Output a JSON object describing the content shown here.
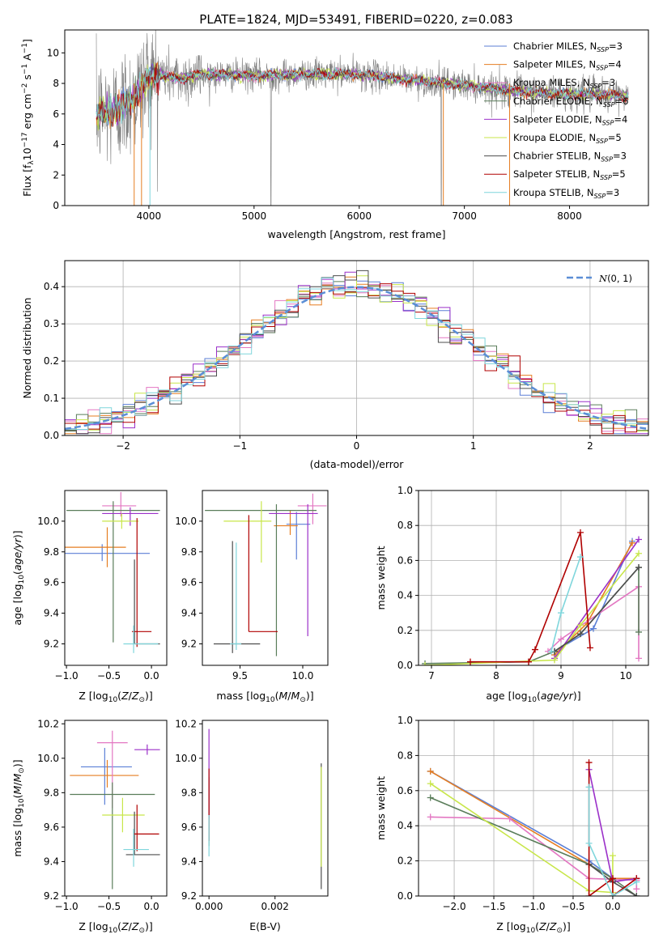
{
  "title": "PLATE=1824, MJD=53491, FIBERID=0220, z=0.083",
  "models": [
    {
      "name": "Chabrier MILES, N_SSP=3",
      "label_main": "Chabrier MILES, N",
      "sub": "SSP",
      "label_tail": "=3",
      "color": "#5b7fd6"
    },
    {
      "name": "Salpeter MILES, N_SSP=4",
      "label_main": "Salpeter MILES, N",
      "sub": "SSP",
      "label_tail": "=4",
      "color": "#e67e22"
    },
    {
      "name": "Kroupa MILES, N_SSP=3",
      "label_main": "Kroupa MILES, N",
      "sub": "SSP",
      "label_tail": "=3",
      "color": "#e377c2"
    },
    {
      "name": "Chabrier ELODIE, N_SSP=6",
      "label_main": "Chabrier ELODIE, N",
      "sub": "SSP",
      "label_tail": "=6",
      "color": "#5a7d5a"
    },
    {
      "name": "Salpeter ELODIE, N_SSP=4",
      "label_main": "Salpeter ELODIE, N",
      "sub": "SSP",
      "label_tail": "=4",
      "color": "#9b30c9"
    },
    {
      "name": "Kroupa ELODIE, N_SSP=5",
      "label_main": "Kroupa ELODIE, N",
      "sub": "SSP",
      "label_tail": "=5",
      "color": "#c8e64a"
    },
    {
      "name": "Chabrier STELIB, N_SSP=3",
      "label_main": "Chabrier STELIB, N",
      "sub": "SSP",
      "label_tail": "=3",
      "color": "#4d4d4d"
    },
    {
      "name": "Salpeter STELIB, N_SSP=5",
      "label_main": "Salpeter STELIB, N",
      "sub": "SSP",
      "label_tail": "=5",
      "color": "#b00000"
    },
    {
      "name": "Kroupa STELIB, N_SSP=3",
      "label_main": "Kroupa STELIB, N",
      "sub": "SSP",
      "label_tail": "=3",
      "color": "#7fd6dc"
    }
  ],
  "data_color": "#808080",
  "chart_data": [
    {
      "id": "spectrum",
      "type": "line",
      "xlabel": "wavelength [Angstrom, rest frame]",
      "ylabel": "Flux [f_λ 10^-17 erg cm^-2 s^-1 A^-1]",
      "xlim": [
        3200,
        8750
      ],
      "ylim": [
        0,
        11.5
      ],
      "xticks": [
        4000,
        5000,
        6000,
        7000,
        8000
      ],
      "yticks": [
        0,
        2,
        4,
        6,
        8,
        10
      ],
      "continuum": [
        [
          3500,
          6.0
        ],
        [
          3700,
          6.3
        ],
        [
          3900,
          7.4
        ],
        [
          4000,
          8.5
        ],
        [
          4100,
          8.6
        ],
        [
          4300,
          8.3
        ],
        [
          4500,
          8.6
        ],
        [
          5000,
          8.5
        ],
        [
          5500,
          8.6
        ],
        [
          6000,
          8.6
        ],
        [
          6500,
          8.2
        ],
        [
          7000,
          7.9
        ],
        [
          7500,
          7.5
        ],
        [
          7800,
          7.35
        ],
        [
          8000,
          7.3
        ],
        [
          8200,
          7.3
        ],
        [
          8500,
          7.2
        ]
      ],
      "grid": false
    },
    {
      "id": "residuals",
      "type": "histogram",
      "xlabel": "(data-model)/error",
      "ylabel": "Normed distribution",
      "xlim": [
        -2.5,
        2.5
      ],
      "ylim": [
        0,
        0.47
      ],
      "xticks": [
        -2,
        -1,
        0,
        1,
        2
      ],
      "yticks": [
        0.0,
        0.1,
        0.2,
        0.3,
        0.4
      ],
      "reference_label": "N(0,1)",
      "reference_color": "#5b8ed6",
      "reference": {
        "mean": 0,
        "sigma": 1
      },
      "grid": true
    },
    {
      "id": "age-vs-metallicity",
      "type": "scatter",
      "xlabel": "Z [log10(Z/Z⊙)]",
      "ylabel": "age [log10(age/yr)]",
      "xlim": [
        -1.02,
        0.18
      ],
      "ylim": [
        9.06,
        10.2
      ],
      "xticks": [
        -1.0,
        -0.5,
        0.0
      ],
      "yticks": [
        9.2,
        9.4,
        9.6,
        9.8,
        10.0
      ],
      "points": [
        {
          "model": 0,
          "x": -0.58,
          "y": 9.79,
          "xerr": [
            0.56,
            0.56
          ],
          "yerr": [
            0.05,
            0.06
          ]
        },
        {
          "model": 1,
          "x": -0.52,
          "y": 9.83,
          "xerr": [
            0.58,
            0.22
          ],
          "yerr": [
            0.13,
            0.13
          ]
        },
        {
          "model": 2,
          "x": -0.36,
          "y": 10.1,
          "xerr": [
            0.22,
            0.18
          ],
          "yerr": [
            0.07,
            0.09
          ]
        },
        {
          "model": 3,
          "x": -0.45,
          "y": 10.07,
          "xerr": [
            0.55,
            0.55
          ],
          "yerr": [
            0.86,
            0.06
          ]
        },
        {
          "model": 4,
          "x": -0.25,
          "y": 10.05,
          "xerr": [
            0.33,
            0.33
          ],
          "yerr": [
            0.08,
            0.04
          ]
        },
        {
          "model": 5,
          "x": -0.35,
          "y": 10.0,
          "xerr": [
            0.23,
            0.2
          ],
          "yerr": [
            0.05,
            0.05
          ]
        },
        {
          "model": 6,
          "x": -0.2,
          "y": 9.2,
          "xerr": [
            0.0,
            0.3
          ],
          "yerr": [
            0.0,
            0.55
          ]
        },
        {
          "model": 7,
          "x": -0.17,
          "y": 9.28,
          "xerr": [
            0.06,
            0.17
          ],
          "yerr": [
            0.1,
            0.74
          ]
        },
        {
          "model": 8,
          "x": -0.21,
          "y": 9.2,
          "xerr": [
            0.12,
            0.29
          ],
          "yerr": [
            0.06,
            0.12
          ]
        }
      ]
    },
    {
      "id": "age-vs-mass",
      "type": "scatter",
      "xlabel": "mass [log10(M/M⊙)]",
      "ylabel": "",
      "xlim": [
        9.2,
        10.2
      ],
      "ylim": [
        9.06,
        10.2
      ],
      "xticks": [
        9.5,
        10.0
      ],
      "yticks": [
        9.2,
        9.4,
        9.6,
        9.8,
        10.0
      ],
      "points": [
        {
          "model": 0,
          "x": 9.95,
          "y": 9.98,
          "xerr": [
            0.08,
            0.11
          ],
          "yerr": [
            0.23,
            0.08
          ]
        },
        {
          "model": 1,
          "x": 9.9,
          "y": 9.97,
          "xerr": [
            0.13,
            0.06
          ],
          "yerr": [
            0.06,
            0.1
          ]
        },
        {
          "model": 2,
          "x": 10.08,
          "y": 10.1,
          "xerr": [
            0.12,
            0.11
          ],
          "yerr": [
            0.12,
            0.08
          ]
        },
        {
          "model": 3,
          "x": 9.79,
          "y": 10.07,
          "xerr": [
            0.57,
            0.32
          ],
          "yerr": [
            0.95,
            0.04
          ]
        },
        {
          "model": 4,
          "x": 10.04,
          "y": 10.05,
          "xerr": [
            0.31,
            0.08
          ],
          "yerr": [
            0.8,
            0.06
          ]
        },
        {
          "model": 5,
          "x": 9.67,
          "y": 10.0,
          "xerr": [
            0.3,
            0.08
          ],
          "yerr": [
            0.27,
            0.13
          ]
        },
        {
          "model": 6,
          "x": 9.44,
          "y": 9.2,
          "xerr": [
            0.15,
            0.22
          ],
          "yerr": [
            0.06,
            0.67
          ]
        },
        {
          "model": 7,
          "x": 9.57,
          "y": 9.28,
          "xerr": [
            0.0,
            0.23
          ],
          "yerr": [
            0.0,
            0.76
          ]
        },
        {
          "model": 8,
          "x": 9.47,
          "y": 9.2,
          "xerr": [
            0.05,
            0.04
          ],
          "yerr": [
            0.04,
            0.66
          ]
        }
      ]
    },
    {
      "id": "weight-vs-age",
      "type": "line",
      "xlabel": "age [log10(age/yr)]",
      "ylabel": "mass weight",
      "xlim": [
        6.8,
        10.35
      ],
      "ylim": [
        0,
        1.0
      ],
      "xticks": [
        7,
        8,
        9,
        10
      ],
      "yticks": [
        0.0,
        0.2,
        0.4,
        0.6,
        0.8,
        1.0
      ],
      "series": [
        {
          "model": 0,
          "x": [
            8.9,
            9.5,
            10.1
          ],
          "y": [
            0.08,
            0.21,
            0.71
          ]
        },
        {
          "model": 1,
          "x": [
            8.9,
            9.4,
            10.1
          ],
          "y": [
            0.06,
            0.24,
            0.7
          ]
        },
        {
          "model": 2,
          "x": [
            8.8,
            9.0,
            10.2,
            10.2
          ],
          "y": [
            0.08,
            0.15,
            0.45,
            0.04
          ]
        },
        {
          "model": 3,
          "x": [
            6.9,
            8.5,
            8.9,
            9.3,
            10.2,
            10.2
          ],
          "y": [
            0.01,
            0.02,
            0.08,
            0.18,
            0.56,
            0.19
          ]
        },
        {
          "model": 4,
          "x": [
            8.9,
            10.2
          ],
          "y": [
            0.04,
            0.72
          ]
        },
        {
          "model": 5,
          "x": [
            6.9,
            8.9,
            9.3,
            10.2
          ],
          "y": [
            0.0,
            0.03,
            0.23,
            0.64
          ]
        },
        {
          "model": 6,
          "x": [
            8.9,
            9.3,
            10.2
          ],
          "y": [
            0.08,
            0.18,
            0.56
          ]
        },
        {
          "model": 7,
          "x": [
            7.6,
            8.5,
            8.6,
            9.3,
            9.45
          ],
          "y": [
            0.02,
            0.02,
            0.09,
            0.76,
            0.1
          ]
        },
        {
          "model": 8,
          "x": [
            8.85,
            9.0,
            9.3
          ],
          "y": [
            0.08,
            0.3,
            0.62
          ]
        }
      ],
      "grid": true
    },
    {
      "id": "mass-vs-metallicity",
      "type": "scatter",
      "xlabel": "Z [log10(Z/Z⊙)]",
      "ylabel": "mass [log10(M/M⊙)]",
      "xlim": [
        -1.02,
        0.18
      ],
      "ylim": [
        9.2,
        10.22
      ],
      "xticks": [
        -1.0,
        -0.5,
        0.0
      ],
      "yticks": [
        9.2,
        9.4,
        9.6,
        9.8,
        10.0,
        10.2
      ],
      "points": [
        {
          "model": 0,
          "x": -0.55,
          "y": 9.95,
          "xerr": [
            0.28,
            0.32
          ],
          "yerr": [
            0.22,
            0.11
          ]
        },
        {
          "model": 1,
          "x": -0.52,
          "y": 9.9,
          "xerr": [
            0.44,
            0.37
          ],
          "yerr": [
            0.07,
            0.09
          ]
        },
        {
          "model": 2,
          "x": -0.46,
          "y": 10.09,
          "xerr": [
            0.18,
            0.18
          ],
          "yerr": [
            0.38,
            0.07
          ]
        },
        {
          "model": 3,
          "x": -0.46,
          "y": 9.79,
          "xerr": [
            0.5,
            0.5
          ],
          "yerr": [
            0.55,
            0.07
          ]
        },
        {
          "model": 4,
          "x": -0.05,
          "y": 10.05,
          "xerr": [
            0.15,
            0.15
          ],
          "yerr": [
            0.03,
            0.03
          ]
        },
        {
          "model": 5,
          "x": -0.34,
          "y": 9.67,
          "xerr": [
            0.24,
            0.26
          ],
          "yerr": [
            0.1,
            0.1
          ]
        },
        {
          "model": 6,
          "x": -0.2,
          "y": 9.44,
          "xerr": [
            0.1,
            0.3
          ],
          "yerr": [
            0.0,
            0.25
          ]
        },
        {
          "model": 7,
          "x": -0.17,
          "y": 9.56,
          "xerr": [
            0.04,
            0.26
          ],
          "yerr": [
            0.1,
            0.17
          ]
        },
        {
          "model": 8,
          "x": -0.21,
          "y": 9.47,
          "xerr": [
            0.12,
            0.18
          ],
          "yerr": [
            0.1,
            0.12
          ]
        }
      ]
    },
    {
      "id": "mass-vs-extinction",
      "type": "scatter",
      "xlabel": "E(B-V)",
      "ylabel": "",
      "xlim": [
        -0.0002,
        0.0036
      ],
      "ylim": [
        9.2,
        10.22
      ],
      "xticks": [
        0.0,
        0.002
      ],
      "xticklabels": [
        "0.000",
        "0.002"
      ],
      "yticks": [
        9.2,
        9.4,
        9.6,
        9.8,
        10.0,
        10.2
      ],
      "points": [
        {
          "model": 3,
          "x": 0.0,
          "y": 9.79,
          "yerr": [
            0.3,
            0.1
          ]
        },
        {
          "model": 4,
          "x": 0.0,
          "y": 10.05,
          "yerr": [
            0.4,
            0.12
          ]
        },
        {
          "model": 7,
          "x": 0.0,
          "y": 9.58,
          "yerr": [
            0.06,
            0.36
          ]
        },
        {
          "model": 8,
          "x": 0.0,
          "y": 9.47,
          "yerr": [
            0.04,
            0.2
          ]
        },
        {
          "model": 6,
          "x": 0.0034,
          "y": 9.79,
          "yerr": [
            0.55,
            0.18
          ]
        },
        {
          "model": 5,
          "x": 0.0034,
          "y": 9.67,
          "yerr": [
            0.3,
            0.28
          ]
        }
      ]
    },
    {
      "id": "weight-vs-metallicity",
      "type": "line",
      "xlabel": "Z [log10(Z/Z⊙)]",
      "ylabel": "mass weight",
      "xlim": [
        -2.45,
        0.45
      ],
      "ylim": [
        0,
        1.0
      ],
      "xticks": [
        -2.0,
        -1.5,
        -1.0,
        -0.5,
        0.0
      ],
      "yticks": [
        0.0,
        0.2,
        0.4,
        0.6,
        0.8,
        1.0
      ],
      "series": [
        {
          "model": 0,
          "x": [
            -2.3,
            -0.3,
            0.0,
            0.3
          ],
          "y": [
            0.71,
            0.2,
            0.1,
            0.09
          ]
        },
        {
          "model": 1,
          "x": [
            -2.3,
            -0.3,
            0.0,
            0.3
          ],
          "y": [
            0.71,
            0.18,
            0.1,
            0.1
          ]
        },
        {
          "model": 2,
          "x": [
            -2.3,
            -1.3,
            -0.3,
            0.3,
            0.3
          ],
          "y": [
            0.45,
            0.44,
            0.1,
            0.09,
            0.04
          ]
        },
        {
          "model": 3,
          "x": [
            -2.3,
            -0.3,
            0.0,
            0.3
          ],
          "y": [
            0.56,
            0.18,
            0.1,
            0.0
          ]
        },
        {
          "model": 4,
          "x": [
            -0.3,
            0.0,
            0.3
          ],
          "y": [
            0.72,
            0.08,
            0.1
          ]
        },
        {
          "model": 5,
          "x": [
            -2.3,
            -0.3,
            0.0,
            0.0
          ],
          "y": [
            0.64,
            0.03,
            0.02,
            0.23
          ]
        },
        {
          "model": 6,
          "x": [
            -0.3,
            0.0,
            0.3
          ],
          "y": [
            0.18,
            0.08,
            0.0
          ]
        },
        {
          "model": 7,
          "x": [
            -0.3,
            -0.3,
            0.0,
            0.0,
            0.3
          ],
          "y": [
            0.76,
            0.0,
            0.1,
            0.0,
            0.1
          ]
        },
        {
          "model": 8,
          "x": [
            -0.3,
            -0.3,
            0.0,
            0.3
          ],
          "y": [
            0.62,
            0.3,
            0.0,
            0.08
          ]
        }
      ],
      "grid": true
    }
  ]
}
